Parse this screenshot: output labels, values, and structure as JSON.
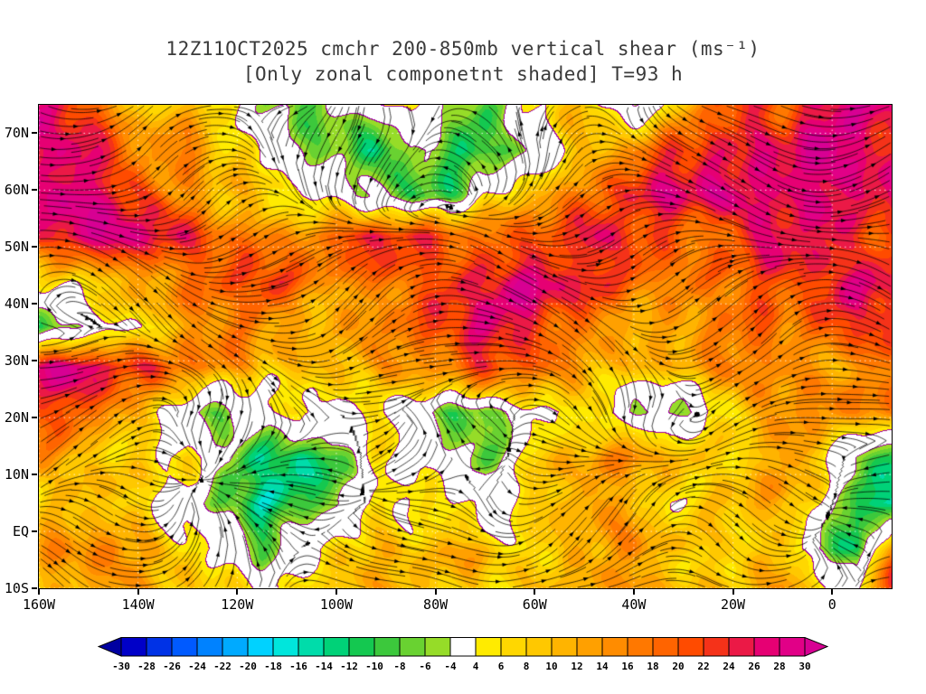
{
  "title": {
    "line1": "12Z11OCT2025 cmchr 200-850mb vertical shear (ms⁻¹)",
    "line2": "[Only zonal componetnt shaded] T=93 h"
  },
  "chart_data": {
    "type": "heatmap",
    "title": "12Z11OCT2025 cmchr 200-850mb vertical shear (ms⁻¹)",
    "subtitle": "[Only zonal componetnt shaded] T=93 h",
    "field_description": "zonal component of 200-850mb vertical wind shear (m/s), color shaded",
    "overlays": {
      "streamlines": "black shear-vector streamlines with arrowheads",
      "contour_lines": "purple contour lines bounding the white -4..4 band",
      "gridlines": "dotted white graticule"
    },
    "x_axis": {
      "label": "longitude",
      "range": [
        -160,
        12
      ],
      "ticks": [
        {
          "value": -160,
          "label": "160W"
        },
        {
          "value": -140,
          "label": "140W"
        },
        {
          "value": -120,
          "label": "120W"
        },
        {
          "value": -100,
          "label": "100W"
        },
        {
          "value": -80,
          "label": "80W"
        },
        {
          "value": -60,
          "label": "60W"
        },
        {
          "value": -40,
          "label": "40W"
        },
        {
          "value": -20,
          "label": "20W"
        },
        {
          "value": 0,
          "label": "0"
        }
      ]
    },
    "y_axis": {
      "label": "latitude",
      "range": [
        -10,
        75
      ],
      "ticks": [
        {
          "value": 70,
          "label": "70N"
        },
        {
          "value": 60,
          "label": "60N"
        },
        {
          "value": 50,
          "label": "50N"
        },
        {
          "value": 40,
          "label": "40N"
        },
        {
          "value": 30,
          "label": "30N"
        },
        {
          "value": 20,
          "label": "20N"
        },
        {
          "value": 10,
          "label": "10N"
        },
        {
          "value": 0,
          "label": "EQ"
        },
        {
          "value": -10,
          "label": "10S"
        }
      ]
    },
    "colorbar": {
      "units": "ms⁻¹",
      "boundaries": [
        -30,
        -28,
        -26,
        -24,
        -22,
        -20,
        -18,
        -16,
        -14,
        -12,
        -10,
        -8,
        -6,
        -4,
        4,
        6,
        8,
        10,
        12,
        14,
        16,
        18,
        20,
        22,
        24,
        26,
        28,
        30
      ],
      "labels": [
        "-30",
        "-28",
        "-26",
        "-24",
        "-22",
        "-20",
        "-18",
        "-16",
        "-14",
        "-12",
        "-10",
        "-8",
        "-6",
        "-4",
        "4",
        "6",
        "8",
        "10",
        "12",
        "14",
        "16",
        "18",
        "20",
        "22",
        "24",
        "26",
        "28",
        "30"
      ],
      "segment_colors": [
        "#0000c8",
        "#0032e6",
        "#005aff",
        "#0082ff",
        "#00aaff",
        "#00d2ff",
        "#00e6dc",
        "#00dcaa",
        "#00d278",
        "#14c850",
        "#3cc83c",
        "#69d231",
        "#96dc28",
        "#ffffff",
        "#ffeb00",
        "#ffd700",
        "#ffc800",
        "#ffb400",
        "#ffa000",
        "#ff8c00",
        "#ff7800",
        "#ff6400",
        "#ff4b00",
        "#f53219",
        "#eb1946",
        "#e60073",
        "#e10087"
      ],
      "under_color": "#0000a0",
      "over_color": "#d70093",
      "white_band": [
        -4,
        4
      ]
    },
    "grid": {
      "lons": [
        -160,
        -152.5,
        -145,
        -137.5,
        -130,
        -122.5,
        -115,
        -107.5,
        -100,
        -92.5,
        -85,
        -77.5,
        -70,
        -62.5,
        -55,
        -47.5,
        -40,
        -32.5,
        -25,
        -17.5,
        -10,
        -2.5,
        5,
        12
      ],
      "lats": [
        75,
        67,
        59,
        52,
        44,
        36,
        29,
        21,
        13,
        5,
        -3,
        -10
      ],
      "values": [
        [
          26,
          22,
          14,
          8,
          10,
          6,
          -2,
          -8,
          -4,
          2,
          6,
          -6,
          -10,
          2,
          10,
          6,
          -4,
          8,
          18,
          24,
          20,
          26,
          28,
          26
        ],
        [
          28,
          26,
          20,
          12,
          16,
          10,
          4,
          -2,
          -8,
          -12,
          -6,
          -10,
          -14,
          -6,
          4,
          12,
          18,
          24,
          26,
          22,
          26,
          28,
          26,
          22
        ],
        [
          28,
          28,
          24,
          18,
          14,
          10,
          8,
          4,
          2,
          -4,
          -10,
          -8,
          4,
          10,
          16,
          20,
          24,
          26,
          28,
          26,
          24,
          26,
          28,
          28
        ],
        [
          26,
          28,
          28,
          26,
          22,
          18,
          14,
          16,
          20,
          26,
          24,
          20,
          16,
          18,
          22,
          26,
          24,
          20,
          18,
          22,
          26,
          24,
          20,
          18
        ],
        [
          6,
          8,
          10,
          14,
          16,
          18,
          22,
          18,
          14,
          16,
          20,
          22,
          26,
          28,
          26,
          22,
          18,
          16,
          18,
          20,
          22,
          24,
          26,
          24
        ],
        [
          -8,
          -4,
          2,
          6,
          12,
          16,
          14,
          12,
          10,
          14,
          18,
          22,
          26,
          24,
          20,
          16,
          12,
          14,
          16,
          18,
          14,
          18,
          22,
          20
        ],
        [
          28,
          28,
          26,
          24,
          20,
          14,
          10,
          8,
          8,
          10,
          14,
          18,
          24,
          22,
          18,
          12,
          8,
          10,
          12,
          16,
          14,
          12,
          16,
          18
        ],
        [
          24,
          20,
          14,
          8,
          -4,
          -8,
          2,
          6,
          0,
          4,
          -2,
          -6,
          -8,
          2,
          6,
          8,
          -4,
          -6,
          2,
          8,
          12,
          14,
          16,
          14
        ],
        [
          14,
          12,
          8,
          6,
          8,
          -6,
          -14,
          -16,
          -8,
          4,
          6,
          0,
          -6,
          4,
          10,
          12,
          14,
          10,
          6,
          10,
          14,
          12,
          -6,
          -10
        ],
        [
          8,
          12,
          10,
          6,
          0,
          -10,
          -16,
          -12,
          -6,
          2,
          6,
          8,
          0,
          6,
          12,
          14,
          8,
          4,
          8,
          12,
          10,
          6,
          -12,
          -16
        ],
        [
          12,
          14,
          18,
          12,
          8,
          2,
          -6,
          0,
          6,
          10,
          8,
          12,
          10,
          6,
          8,
          12,
          14,
          10,
          6,
          8,
          12,
          -4,
          -12,
          18
        ],
        [
          10,
          12,
          16,
          14,
          10,
          6,
          2,
          4,
          8,
          10,
          12,
          10,
          8,
          10,
          12,
          14,
          12,
          10,
          8,
          10,
          14,
          8,
          2,
          24
        ]
      ]
    }
  },
  "colors": {
    "streamline": "#000000",
    "contour": "#a000a0",
    "frame": "#000000",
    "title_text": "#3a3a3a"
  }
}
